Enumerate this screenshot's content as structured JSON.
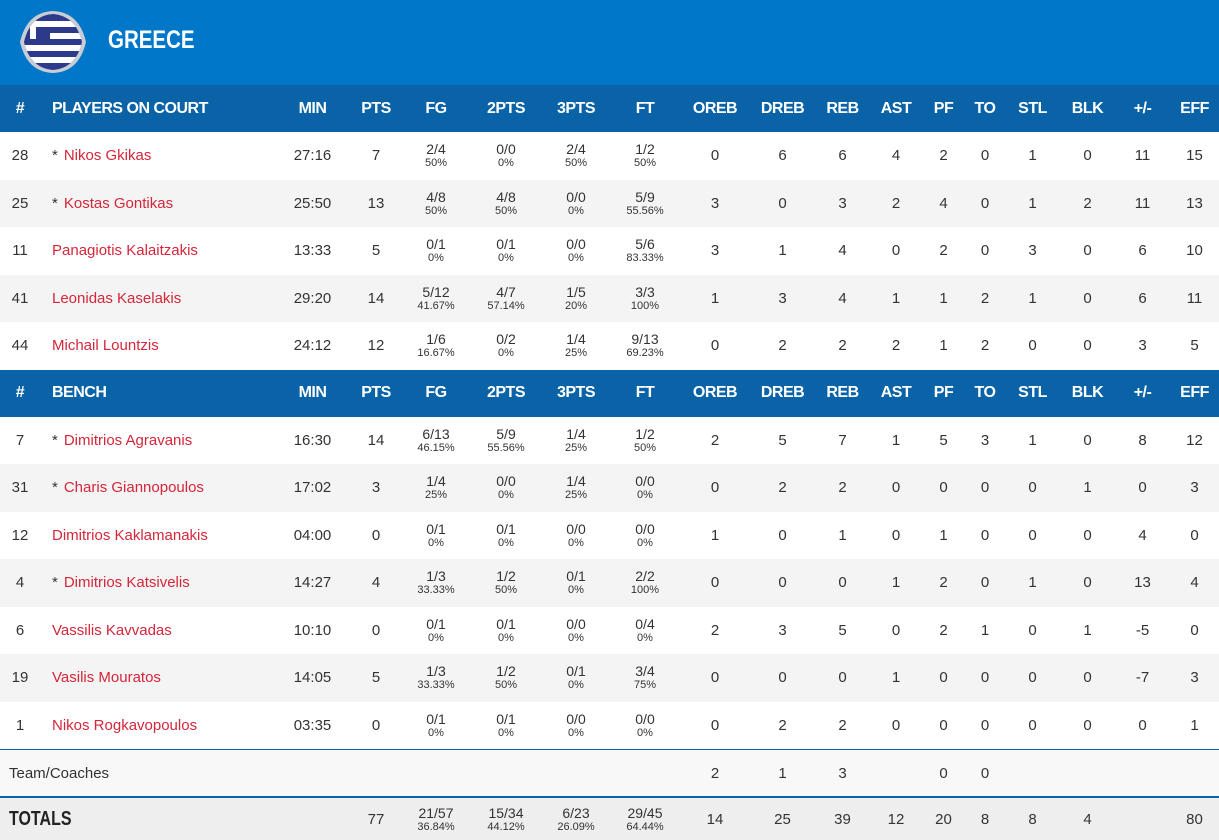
{
  "team": {
    "name": "GREECE",
    "flag": "greece-flag"
  },
  "columns": [
    "#",
    "MIN",
    "PTS",
    "FG",
    "2PTS",
    "3PTS",
    "FT",
    "OREB",
    "DREB",
    "REB",
    "AST",
    "PF",
    "TO",
    "STL",
    "BLK",
    "+/-",
    "EFF"
  ],
  "starters_label": "PLAYERS ON COURT",
  "bench_label": "BENCH",
  "starters": [
    [
      "28",
      "*",
      "Nikos Gkikas",
      "27:16",
      "7",
      "2/4",
      "50%",
      "0/0",
      "0%",
      "2/4",
      "50%",
      "1/2",
      "50%",
      "0",
      "6",
      "6",
      "4",
      "2",
      "0",
      "1",
      "0",
      "11",
      "15"
    ],
    [
      "25",
      "*",
      "Kostas Gontikas",
      "25:50",
      "13",
      "4/8",
      "50%",
      "4/8",
      "50%",
      "0/0",
      "0%",
      "5/9",
      "55.56%",
      "3",
      "0",
      "3",
      "2",
      "4",
      "0",
      "1",
      "2",
      "11",
      "13"
    ],
    [
      "11",
      "",
      "Panagiotis Kalaitzakis",
      "13:33",
      "5",
      "0/1",
      "0%",
      "0/1",
      "0%",
      "0/0",
      "0%",
      "5/6",
      "83.33%",
      "3",
      "1",
      "4",
      "0",
      "2",
      "0",
      "3",
      "0",
      "6",
      "10"
    ],
    [
      "41",
      "",
      "Leonidas Kaselakis",
      "29:20",
      "14",
      "5/12",
      "41.67%",
      "4/7",
      "57.14%",
      "1/5",
      "20%",
      "3/3",
      "100%",
      "1",
      "3",
      "4",
      "1",
      "1",
      "2",
      "1",
      "0",
      "6",
      "11"
    ],
    [
      "44",
      "",
      "Michail Lountzis",
      "24:12",
      "12",
      "1/6",
      "16.67%",
      "0/2",
      "0%",
      "1/4",
      "25%",
      "9/13",
      "69.23%",
      "0",
      "2",
      "2",
      "2",
      "1",
      "2",
      "0",
      "0",
      "3",
      "5"
    ]
  ],
  "bench": [
    [
      "7",
      "*",
      "Dimitrios Agravanis",
      "16:30",
      "14",
      "6/13",
      "46.15%",
      "5/9",
      "55.56%",
      "1/4",
      "25%",
      "1/2",
      "50%",
      "2",
      "5",
      "7",
      "1",
      "5",
      "3",
      "1",
      "0",
      "8",
      "12"
    ],
    [
      "31",
      "*",
      "Charis Giannopoulos",
      "17:02",
      "3",
      "1/4",
      "25%",
      "0/0",
      "0%",
      "1/4",
      "25%",
      "0/0",
      "0%",
      "0",
      "2",
      "2",
      "0",
      "0",
      "0",
      "0",
      "1",
      "0",
      "3"
    ],
    [
      "12",
      "",
      "Dimitrios Kaklamanakis",
      "04:00",
      "0",
      "0/1",
      "0%",
      "0/1",
      "0%",
      "0/0",
      "0%",
      "0/0",
      "0%",
      "1",
      "0",
      "1",
      "0",
      "1",
      "0",
      "0",
      "0",
      "4",
      "0"
    ],
    [
      "4",
      "*",
      "Dimitrios Katsivelis",
      "14:27",
      "4",
      "1/3",
      "33.33%",
      "1/2",
      "50%",
      "0/1",
      "0%",
      "2/2",
      "100%",
      "0",
      "0",
      "0",
      "1",
      "2",
      "0",
      "1",
      "0",
      "13",
      "4"
    ],
    [
      "6",
      "",
      "Vassilis Kavvadas",
      "10:10",
      "0",
      "0/1",
      "0%",
      "0/1",
      "0%",
      "0/0",
      "0%",
      "0/4",
      "0%",
      "2",
      "3",
      "5",
      "0",
      "2",
      "1",
      "0",
      "1",
      "-5",
      "0"
    ],
    [
      "19",
      "",
      "Vasilis Mouratos",
      "14:05",
      "5",
      "1/3",
      "33.33%",
      "1/2",
      "50%",
      "0/1",
      "0%",
      "3/4",
      "75%",
      "0",
      "0",
      "0",
      "1",
      "0",
      "0",
      "0",
      "0",
      "-7",
      "3"
    ],
    [
      "1",
      "",
      "Nikos Rogkavopoulos",
      "03:35",
      "0",
      "0/1",
      "0%",
      "0/1",
      "0%",
      "0/0",
      "0%",
      "0/0",
      "0%",
      "0",
      "2",
      "2",
      "0",
      "0",
      "0",
      "0",
      "0",
      "0",
      "1"
    ]
  ],
  "team_coaches": {
    "label": "Team/Coaches",
    "oreb": "2",
    "dreb": "1",
    "reb": "3",
    "pf": "0",
    "to": "0"
  },
  "totals": {
    "label": "TOTALS",
    "pts": "77",
    "fg": [
      "21/57",
      "36.84%"
    ],
    "two": [
      "15/34",
      "44.12%"
    ],
    "three": [
      "6/23",
      "26.09%"
    ],
    "ft": [
      "29/45",
      "64.44%"
    ],
    "oreb": "14",
    "dreb": "25",
    "reb": "39",
    "ast": "12",
    "pf": "20",
    "to": "8",
    "stl": "8",
    "blk": "4",
    "pm": "",
    "eff": "80"
  }
}
